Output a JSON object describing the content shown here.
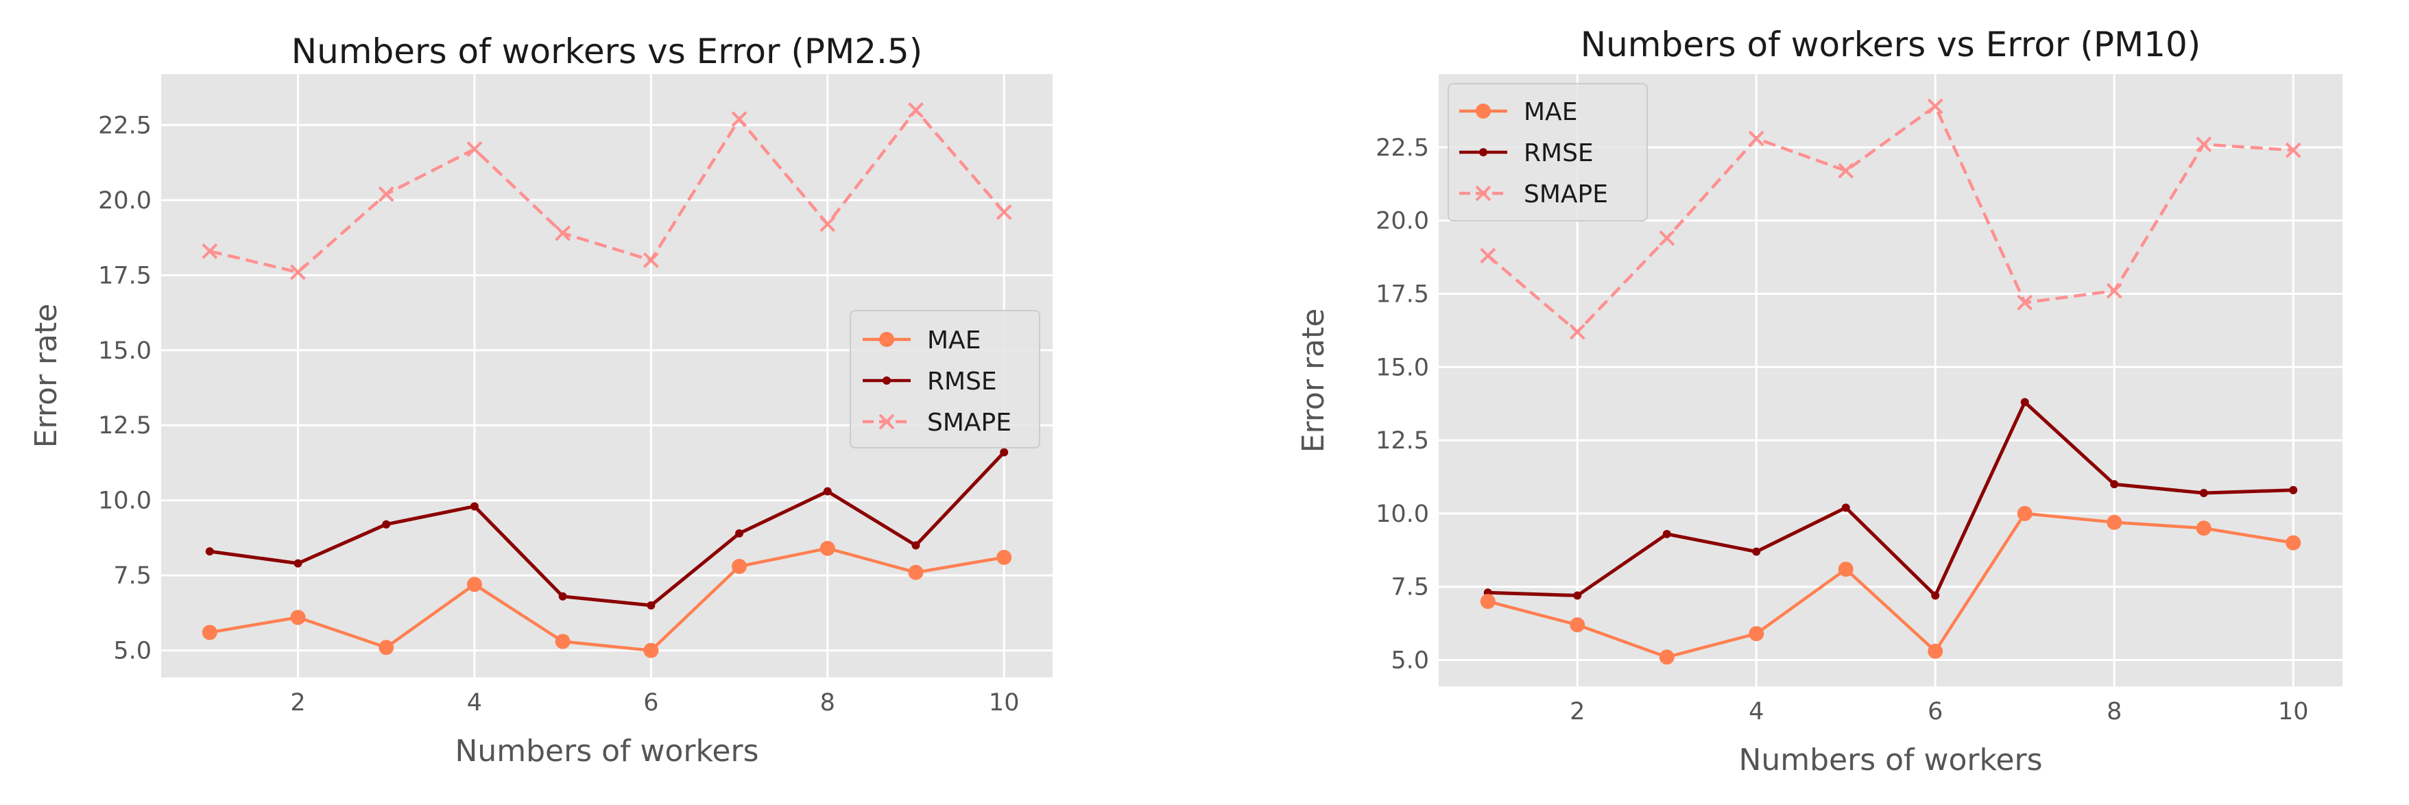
{
  "chart_data": [
    {
      "type": "line",
      "title": "Numbers of workers vs Error (PM2.5)",
      "xlabel": "Numbers of workers",
      "ylabel": "Error rate",
      "x": [
        1,
        2,
        3,
        4,
        5,
        6,
        7,
        8,
        9,
        10
      ],
      "xticks": [
        2,
        4,
        6,
        8,
        10
      ],
      "xtick_labels": [
        "2",
        "4",
        "6",
        "8",
        "10"
      ],
      "yticks": [
        5.0,
        7.5,
        10.0,
        12.5,
        15.0,
        17.5,
        20.0,
        22.5
      ],
      "ytick_labels": [
        "5.0",
        "7.5",
        "10.0",
        "12.5",
        "15.0",
        "17.5",
        "20.0",
        "22.5"
      ],
      "xlim": [
        0.45,
        10.55
      ],
      "ylim": [
        4.1,
        24.2
      ],
      "grid": true,
      "legend_position": "center-right",
      "series": [
        {
          "name": "MAE",
          "color": "#ff7f50",
          "style": "solid-circle",
          "values": [
            5.6,
            6.1,
            5.1,
            7.2,
            5.3,
            5.0,
            7.8,
            8.4,
            7.6,
            8.1
          ]
        },
        {
          "name": "RMSE",
          "color": "#8b0000",
          "style": "solid-dot",
          "values": [
            8.3,
            7.9,
            9.2,
            9.8,
            6.8,
            6.5,
            8.9,
            10.3,
            8.5,
            11.6
          ]
        },
        {
          "name": "SMAPE",
          "color": "#ff9090",
          "style": "dashed-x",
          "values": [
            18.3,
            17.6,
            20.2,
            21.7,
            18.9,
            18.0,
            22.7,
            19.2,
            23.0,
            19.6
          ]
        }
      ]
    },
    {
      "type": "line",
      "title": "Numbers of workers vs Error (PM10)",
      "xlabel": "Numbers of workers",
      "ylabel": "Error rate",
      "x": [
        1,
        2,
        3,
        4,
        5,
        6,
        7,
        8,
        9,
        10
      ],
      "xticks": [
        2,
        4,
        6,
        8,
        10
      ],
      "xtick_labels": [
        "2",
        "4",
        "6",
        "8",
        "10"
      ],
      "yticks": [
        5.0,
        7.5,
        10.0,
        12.5,
        15.0,
        17.5,
        20.0,
        22.5
      ],
      "ytick_labels": [
        "5.0",
        "7.5",
        "10.0",
        "12.5",
        "15.0",
        "17.5",
        "20.0",
        "22.5"
      ],
      "xlim": [
        0.45,
        10.55
      ],
      "ylim": [
        4.1,
        25.0
      ],
      "grid": true,
      "legend_position": "upper-left",
      "series": [
        {
          "name": "MAE",
          "color": "#ff7f50",
          "style": "solid-circle",
          "values": [
            7.0,
            6.2,
            5.1,
            5.9,
            8.1,
            5.3,
            10.0,
            9.7,
            9.5,
            9.0
          ]
        },
        {
          "name": "RMSE",
          "color": "#8b0000",
          "style": "solid-dot",
          "values": [
            7.3,
            7.2,
            9.3,
            8.7,
            10.2,
            7.2,
            13.8,
            11.0,
            10.7,
            10.8
          ]
        },
        {
          "name": "SMAPE",
          "color": "#ff9090",
          "style": "dashed-x",
          "values": [
            18.8,
            16.2,
            19.4,
            22.8,
            21.7,
            23.9,
            17.2,
            17.6,
            22.6,
            22.4
          ]
        }
      ]
    }
  ]
}
